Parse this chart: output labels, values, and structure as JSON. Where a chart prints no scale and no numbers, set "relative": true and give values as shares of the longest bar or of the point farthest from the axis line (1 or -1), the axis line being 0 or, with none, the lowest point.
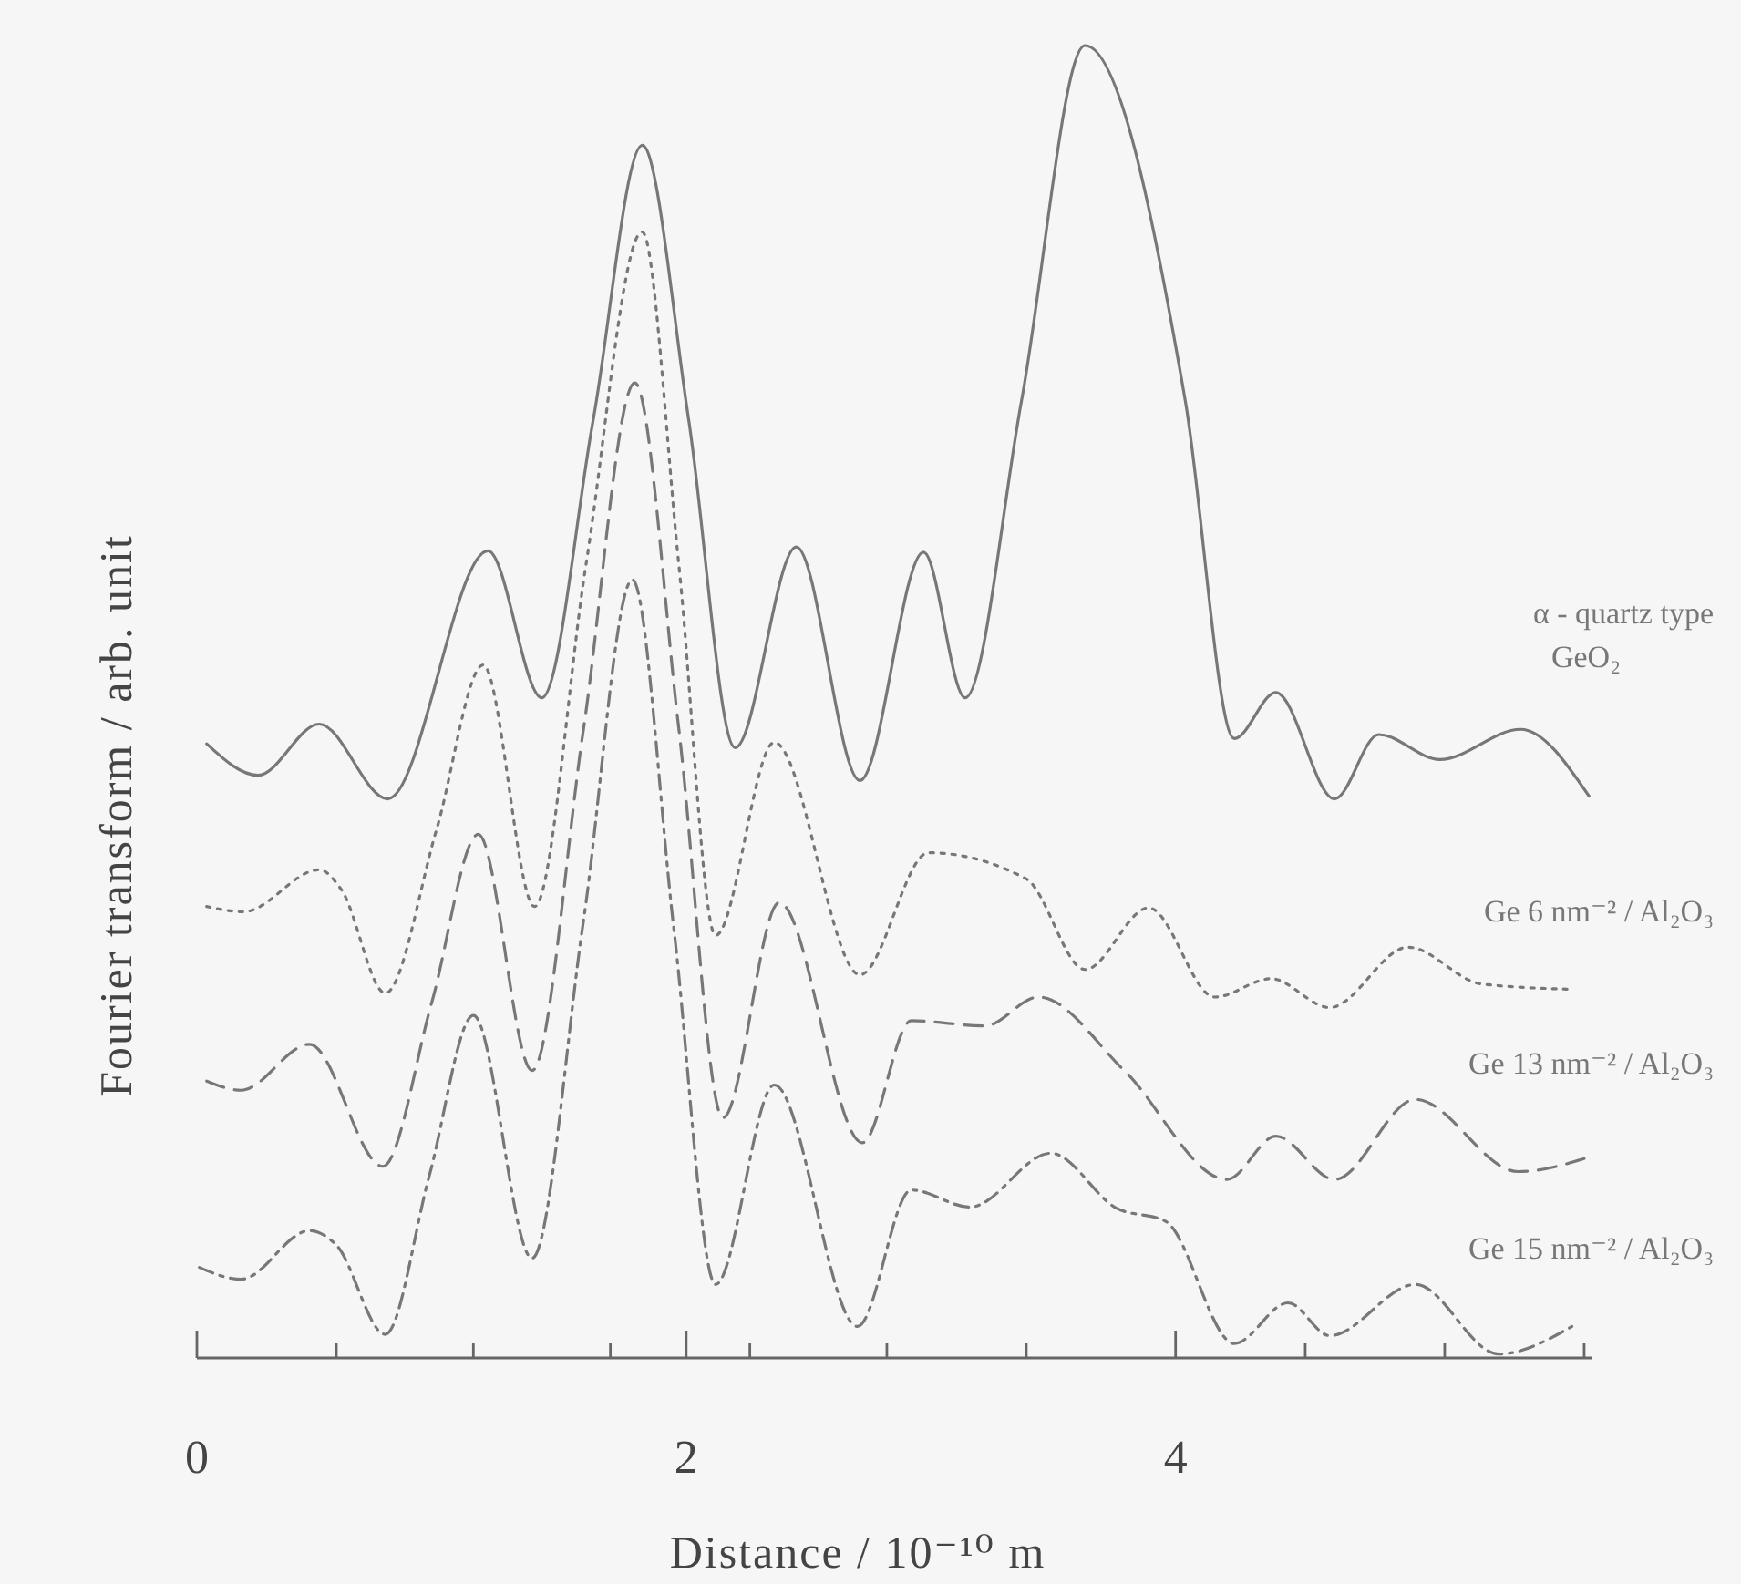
{
  "chart_data": {
    "type": "line",
    "relative": true,
    "xlabel": "Distance / 10⁻¹⁰ m",
    "ylabel": "Fourier transform / arb. unit",
    "xlim": [
      0,
      5.7
    ],
    "xticks": [
      0,
      {
        "value": 0.57,
        "label": null
      },
      {
        "value": 1.13,
        "label": null
      },
      {
        "value": 1.69,
        "label": null
      },
      2,
      {
        "value": 2.26,
        "label": null
      },
      {
        "value": 2.82,
        "label": null
      },
      {
        "value": 3.39,
        "label": null
      },
      4,
      {
        "value": 4.53,
        "label": null
      },
      {
        "value": 5.1,
        "label": null
      },
      {
        "value": 5.67,
        "label": null
      }
    ],
    "series": [
      {
        "name": "α - quartz type\nGeO₂",
        "color": "#777777",
        "line_style": "solid",
        "x": [
          0.04,
          0.25,
          0.5,
          0.78,
          1.19,
          1.41,
          1.62,
          1.82,
          2.01,
          2.2,
          2.45,
          2.71,
          2.97,
          3.14,
          3.37,
          3.63,
          4.04,
          4.24,
          4.41,
          4.65,
          4.83,
          5.08,
          5.41,
          5.69
        ],
        "values": [
          0.468,
          0.444,
          0.483,
          0.426,
          0.615,
          0.503,
          0.715,
          0.924,
          0.715,
          0.465,
          0.618,
          0.44,
          0.614,
          0.503,
          0.729,
          1,
          0.729,
          0.472,
          0.507,
          0.426,
          0.475,
          0.456,
          0.479,
          0.428
        ]
      },
      {
        "name": "Ge 6 nm⁻² / Al₂O₃",
        "color": "#777777",
        "line_style": "dotted",
        "x": [
          0.04,
          0.19,
          0.5,
          0.59,
          0.77,
          0.98,
          1.17,
          1.38,
          1.59,
          1.82,
          1.97,
          2.12,
          2.36,
          2.71,
          2.99,
          3.39,
          3.63,
          3.89,
          4.16,
          4.39,
          4.63,
          4.95,
          5.25,
          5.61
        ],
        "values": [
          0.344,
          0.34,
          0.372,
          0.357,
          0.278,
          0.403,
          0.528,
          0.344,
          0.604,
          0.858,
          0.604,
          0.322,
          0.469,
          0.292,
          0.385,
          0.365,
          0.296,
          0.343,
          0.275,
          0.289,
          0.267,
          0.313,
          0.285,
          0.281
        ]
      },
      {
        "name": "Ge 13 nm⁻² / Al₂O₃",
        "color": "#777777",
        "line_style": "dashed",
        "x": [
          0.04,
          0.18,
          0.46,
          0.76,
          0.96,
          1.15,
          1.37,
          1.58,
          1.79,
          1.97,
          2.15,
          2.38,
          2.72,
          2.92,
          3.22,
          3.44,
          3.79,
          4.21,
          4.41,
          4.65,
          4.98,
          5.4,
          5.69
        ],
        "values": [
          0.211,
          0.204,
          0.239,
          0.146,
          0.271,
          0.399,
          0.219,
          0.479,
          0.743,
          0.479,
          0.183,
          0.347,
          0.164,
          0.257,
          0.253,
          0.275,
          0.219,
          0.136,
          0.169,
          0.136,
          0.197,
          0.142,
          0.153
        ]
      },
      {
        "name": "Ge 15 nm⁻² / Al₂O₃",
        "color": "#777777",
        "line_style": "dashdot",
        "x": [
          0.01,
          0.18,
          0.46,
          0.57,
          0.77,
          0.95,
          1.13,
          1.37,
          1.58,
          1.78,
          1.95,
          2.12,
          2.36,
          2.7,
          2.92,
          3.16,
          3.49,
          3.76,
          3.96,
          4.24,
          4.46,
          4.63,
          4.98,
          5.32,
          5.62
        ],
        "values": [
          0.069,
          0.06,
          0.097,
          0.086,
          0.018,
          0.139,
          0.261,
          0.076,
          0.333,
          0.593,
          0.326,
          0.056,
          0.208,
          0.024,
          0.128,
          0.115,
          0.156,
          0.114,
          0.104,
          0.011,
          0.042,
          0.017,
          0.056,
          0.003,
          0.024
        ]
      }
    ]
  }
}
